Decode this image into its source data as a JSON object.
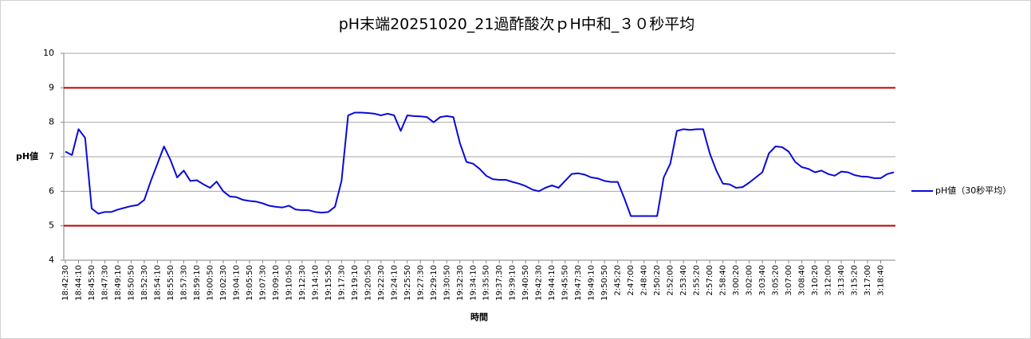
{
  "chart_data": {
    "type": "line",
    "title": "pH末端20251020_21過酢酸次ｐH中和_３０秒平均",
    "y_label": "pH値",
    "x_label": "時間",
    "categories": [
      "18:42:30",
      null,
      "18:44:10",
      null,
      "18:45:50",
      null,
      "18:47:30",
      null,
      "18:49:10",
      null,
      "18:50:50",
      null,
      "18:52:30",
      null,
      "18:54:10",
      null,
      "18:55:50",
      null,
      "18:57:30",
      null,
      "18:59:10",
      null,
      "19:00:50",
      null,
      "19:02:30",
      null,
      "19:04:10",
      null,
      "19:05:50",
      null,
      "19:07:30",
      null,
      "19:09:10",
      null,
      "19:10:50",
      null,
      "19:12:30",
      null,
      "19:14:10",
      null,
      "19:15:50",
      null,
      "19:17:30",
      null,
      "19:19:10",
      null,
      "19:20:50",
      null,
      "19:22:30",
      null,
      "19:24:10",
      null,
      "19:25:50",
      null,
      "19:27:30",
      null,
      "19:29:10",
      null,
      "19:30:50",
      null,
      "19:32:30",
      null,
      "19:34:10",
      null,
      "19:35:50",
      null,
      "19:37:30",
      null,
      "19:39:10",
      null,
      "19:40:50",
      null,
      "19:42:30",
      null,
      "19:44:10",
      null,
      "19:45:50",
      null,
      "19:47:30",
      null,
      "19:49:10",
      null,
      "19:50:50",
      null,
      "2:45:20",
      null,
      "2:47:00",
      null,
      "2:48:40",
      null,
      "2:50:20",
      null,
      "2:52:00",
      null,
      "2:53:40",
      null,
      "2:55:20",
      null,
      "2:57:00",
      null,
      "2:58:40",
      null,
      "3:00:20",
      null,
      "3:02:00",
      null,
      "3:03:40",
      null,
      "3:05:20",
      null,
      "3:07:00",
      null,
      "3:08:40",
      null,
      "3:10:20",
      null,
      "3:12:00",
      null,
      "3:13:40",
      null,
      "3:15:20",
      null,
      "3:17:00",
      null,
      "3:18:40",
      null,
      null
    ],
    "series": [
      {
        "name": "pH値（30秒平均）",
        "color": "#0a0ad8",
        "values": [
          7.15,
          7.05,
          7.8,
          7.55,
          5.5,
          5.35,
          5.4,
          5.4,
          5.47,
          5.52,
          5.57,
          5.6,
          5.75,
          6.3,
          6.8,
          7.3,
          6.9,
          6.4,
          6.6,
          6.3,
          6.32,
          6.2,
          6.1,
          6.28,
          6.0,
          5.85,
          5.83,
          5.75,
          5.72,
          5.7,
          5.65,
          5.58,
          5.55,
          5.53,
          5.58,
          5.47,
          5.45,
          5.45,
          5.4,
          5.38,
          5.4,
          5.55,
          6.3,
          8.2,
          8.28,
          8.28,
          8.27,
          8.25,
          8.2,
          8.25,
          8.2,
          7.75,
          8.2,
          8.18,
          8.17,
          8.15,
          8.0,
          8.15,
          8.18,
          8.15,
          7.4,
          6.85,
          6.8,
          6.65,
          6.45,
          6.35,
          6.33,
          6.33,
          6.27,
          6.22,
          6.15,
          6.05,
          6.0,
          6.1,
          6.17,
          6.1,
          6.3,
          6.5,
          6.52,
          6.48,
          6.4,
          6.37,
          6.3,
          6.27,
          6.27,
          5.8,
          5.28,
          5.28,
          5.28,
          5.28,
          5.28,
          6.4,
          6.8,
          7.75,
          7.8,
          7.78,
          7.8,
          7.8,
          7.1,
          6.6,
          6.22,
          6.2,
          6.1,
          6.12,
          6.25,
          6.4,
          6.55,
          7.1,
          7.3,
          7.28,
          7.15,
          6.85,
          6.7,
          6.65,
          6.55,
          6.6,
          6.5,
          6.45,
          6.57,
          6.55,
          6.47,
          6.43,
          6.42,
          6.38,
          6.38,
          6.5,
          6.55
        ]
      }
    ],
    "ylim": [
      4,
      10
    ],
    "yticks": [
      4,
      5,
      6,
      7,
      8,
      9,
      10
    ],
    "grid": true,
    "reference_lines": [
      5,
      9
    ],
    "reference_color": "#c00000",
    "legend": "right"
  }
}
